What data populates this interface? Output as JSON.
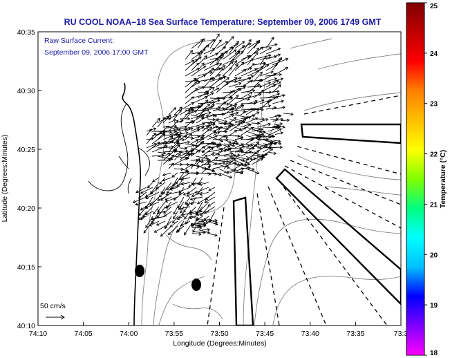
{
  "title": "RU COOL  NOAA–18  Sea Surface Temperature:  September 09, 2006 1749 GMT",
  "subtitle_line1": "Raw Surface Current:",
  "subtitle_line2": "September 09, 2006 17:00 GMT",
  "x_axis_label": "Longitude (Degrees:Minutes)",
  "y_axis_label": "Latitude (Degrees:Minutes)",
  "x_ticks": [
    "74:10",
    "74:05",
    "74:00",
    "73:55",
    "73:50",
    "73:45",
    "73:40",
    "73:35",
    "73:3"
  ],
  "y_ticks": [
    "40:35",
    "40:30",
    "40:25",
    "40:20",
    "40:15",
    "40:10"
  ],
  "scale_label": "50 cm/s",
  "colorbar": {
    "label": "Temperature (°C)",
    "min": 18,
    "max": 25,
    "ticks": [
      "25",
      "24",
      "23",
      "22",
      "21",
      "20",
      "19",
      "18"
    ],
    "colors": [
      "#ff00ff",
      "#7f00ff",
      "#0000ff",
      "#00bfff",
      "#00ffff",
      "#00ff80",
      "#80ff00",
      "#ffff00",
      "#ffbf00",
      "#ff8000",
      "#ff0000",
      "#bf0000",
      "#800000"
    ]
  },
  "map_colors": {
    "land": "#ffffff",
    "water": "#ffffff",
    "contour": "#808080",
    "coast": "#000000",
    "arrow": "#000000"
  }
}
